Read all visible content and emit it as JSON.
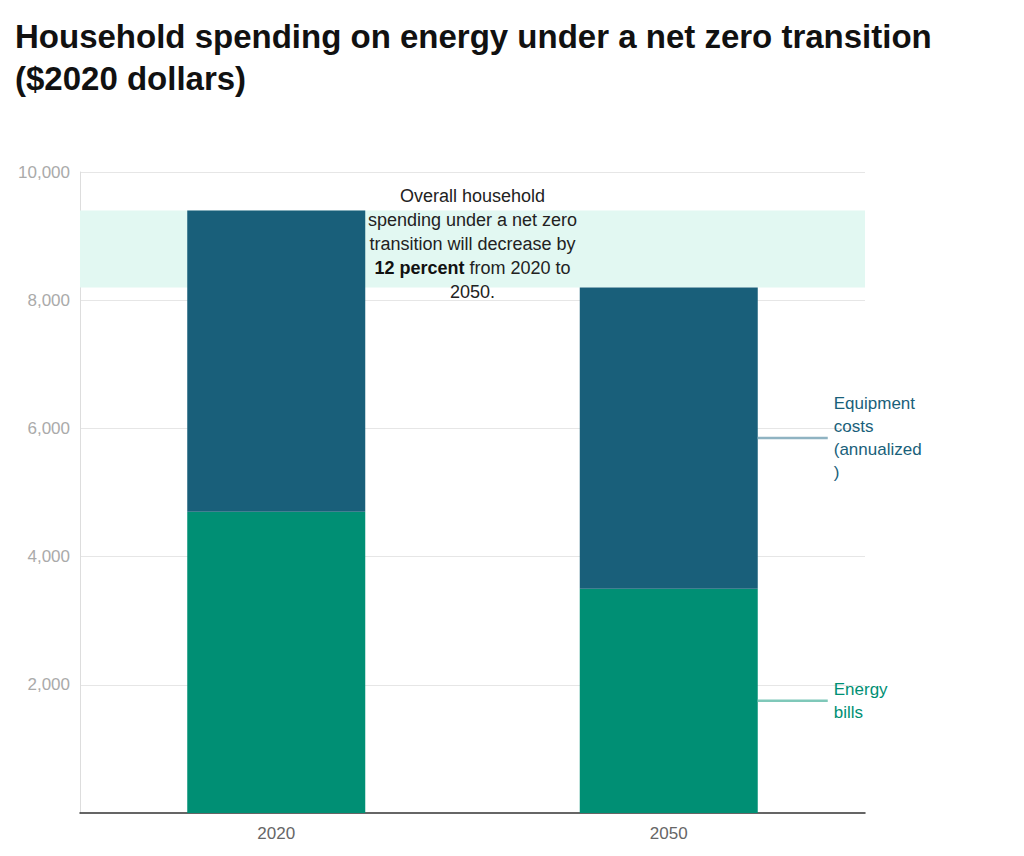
{
  "chart_data": {
    "type": "bar",
    "title": "Household spending on energy under a net zero transition ($2020 dollars)",
    "categories": [
      "2020",
      "2050"
    ],
    "series": [
      {
        "name": "Energy bills",
        "color": "#008f74",
        "values": [
          4700,
          3500
        ]
      },
      {
        "name": "Equipment costs (annualized)",
        "color": "#195f7a",
        "values": [
          4700,
          4700
        ]
      }
    ],
    "stacked": true,
    "ylim": [
      0,
      10000
    ],
    "yticks": [
      {
        "value": 2000,
        "label": "2,000"
      },
      {
        "value": 4000,
        "label": "4,000"
      },
      {
        "value": 6000,
        "label": "6,000"
      },
      {
        "value": 8000,
        "label": "8,000"
      },
      {
        "value": 10000,
        "label": "10,000"
      }
    ],
    "grid": true,
    "annotation": [
      "Overall household",
      "spending under a net zero",
      "transition will decrease by",
      "12 percent from 2020 to",
      "2050."
    ],
    "annotation_bold": "12 percent"
  }
}
